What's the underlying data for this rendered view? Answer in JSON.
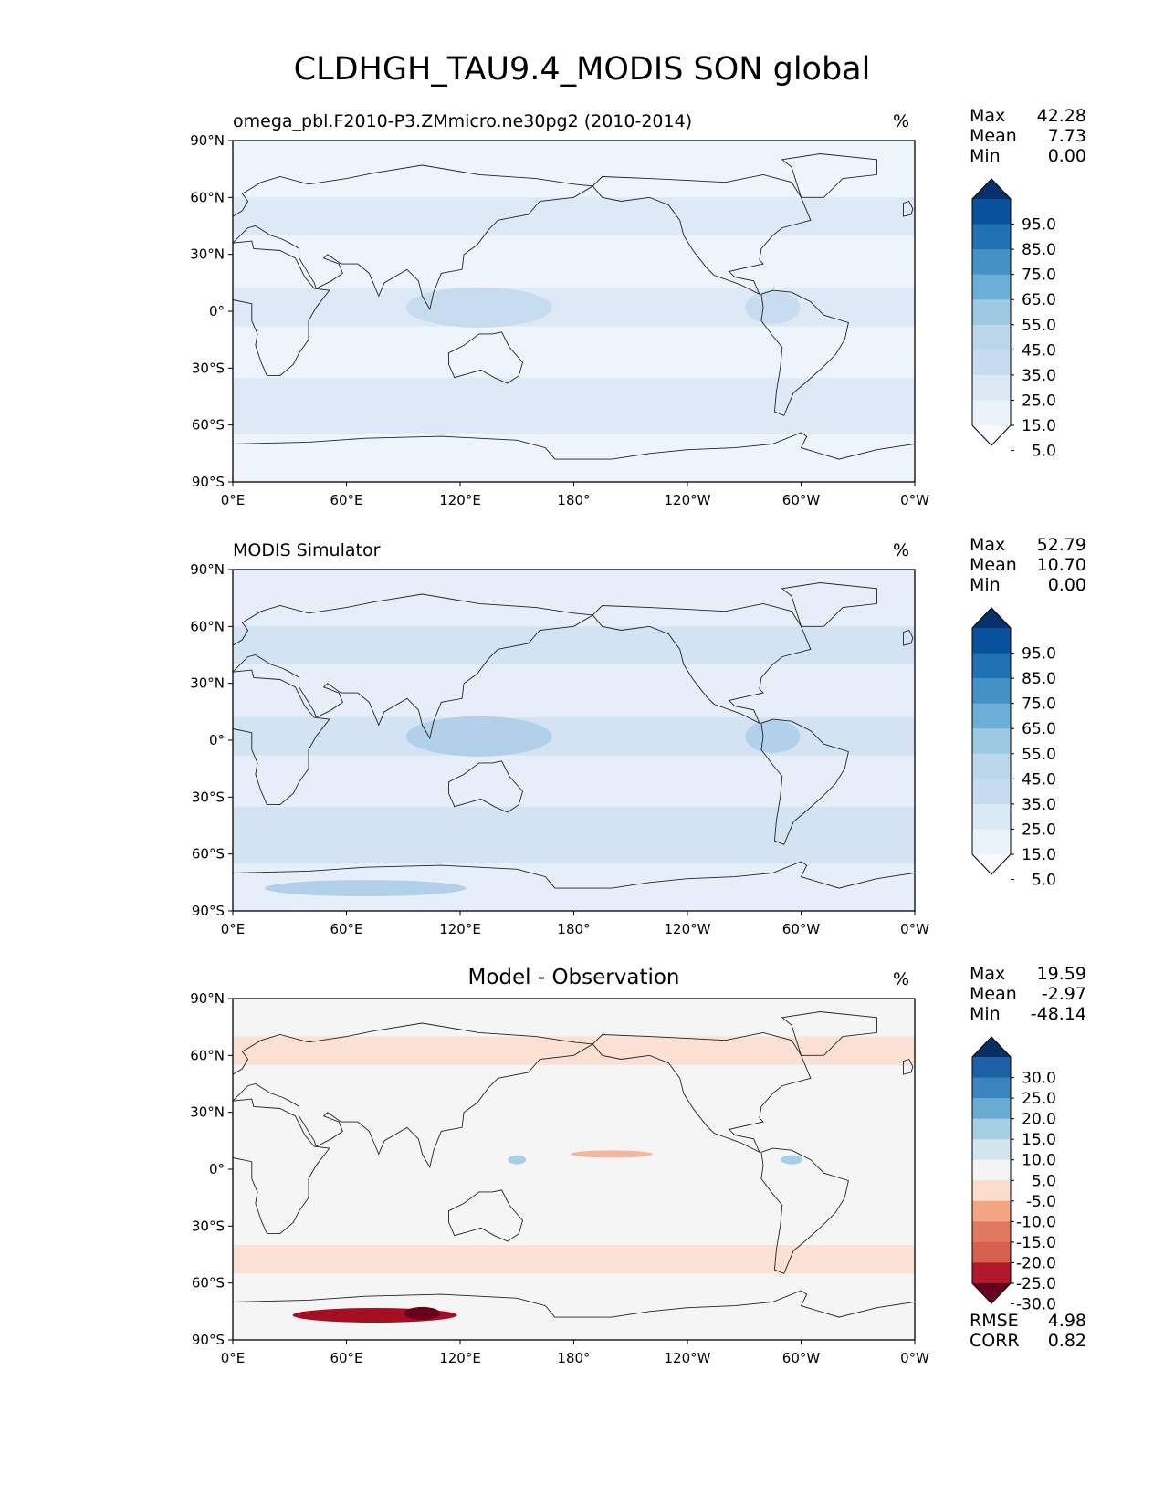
{
  "title": "CLDHGH_TAU9.4_MODIS SON global",
  "lon_ticks": [
    "0°E",
    "60°E",
    "120°E",
    "180°",
    "120°W",
    "60°W",
    "0°W"
  ],
  "lat_ticks": [
    "90°N",
    "60°N",
    "30°N",
    "0°",
    "30°S",
    "60°S",
    "90°S"
  ],
  "panels": [
    {
      "title": "omega_pbl.F2010-P3.ZMmicro.ne30pg2 (2010-2014)",
      "title_align": "left",
      "units": "%",
      "stats": [
        {
          "label": "Max",
          "value": "42.28"
        },
        {
          "label": "Mean",
          "value": "7.73"
        },
        {
          "label": "Min",
          "value": "0.00"
        }
      ],
      "colorbar_labels": [
        "95.0",
        "85.0",
        "75.0",
        "65.0",
        "55.0",
        "45.0",
        "35.0",
        "25.0",
        "15.0",
        "5.0"
      ],
      "colorbar_colors": [
        "#08306b",
        "#08519c",
        "#2171b5",
        "#4292c6",
        "#6baed6",
        "#9ecae1",
        "#bcd7eb",
        "#c6dbef",
        "#dbe9f6",
        "#eaf2fa",
        "#f7fbff"
      ],
      "map_colors": {
        "ocean": "#eef4fb",
        "band": "#dde9f6",
        "deep": "#c7dcef"
      }
    },
    {
      "title": "MODIS Simulator",
      "title_align": "left",
      "units": "%",
      "stats": [
        {
          "label": "Max",
          "value": "52.79"
        },
        {
          "label": "Mean",
          "value": "10.70"
        },
        {
          "label": "Min",
          "value": "0.00"
        }
      ],
      "colorbar_labels": [
        "95.0",
        "85.0",
        "75.0",
        "65.0",
        "55.0",
        "45.0",
        "35.0",
        "25.0",
        "15.0",
        "5.0"
      ],
      "colorbar_colors": [
        "#08306b",
        "#08519c",
        "#2171b5",
        "#4292c6",
        "#6baed6",
        "#9ecae1",
        "#bcd7eb",
        "#c6dbef",
        "#dbe9f6",
        "#eaf2fa",
        "#f7fbff"
      ],
      "map_colors": {
        "ocean": "#e6eff9",
        "band": "#d3e3f3",
        "deep": "#b3d0ea"
      }
    },
    {
      "title": "Model - Observation",
      "title_align": "center",
      "units": "%",
      "stats": [
        {
          "label": "Max",
          "value": "19.59"
        },
        {
          "label": "Mean",
          "value": "-2.97"
        },
        {
          "label": "Min",
          "value": "-48.14"
        }
      ],
      "colorbar_labels": [
        "30.0",
        "25.0",
        "20.0",
        "15.0",
        "10.0",
        "5.0",
        "-5.0",
        "-10.0",
        "-15.0",
        "-20.0",
        "-25.0",
        "-30.0"
      ],
      "colorbar_colors": [
        "#053061",
        "#1f5fa6",
        "#3a85c0",
        "#6aacd1",
        "#a7cfe4",
        "#d3e6f0",
        "#f4f4f4",
        "#fbdccd",
        "#f4a582",
        "#e17860",
        "#d6604d",
        "#b2182b",
        "#67001f"
      ],
      "map_colors": {
        "ocean": "#f5f5f5",
        "band": "#fbe0d4",
        "deep": "#f4b79b"
      },
      "extra_stats": [
        {
          "label": "RMSE",
          "value": "4.98"
        },
        {
          "label": "CORR",
          "value": "0.82"
        }
      ]
    }
  ]
}
